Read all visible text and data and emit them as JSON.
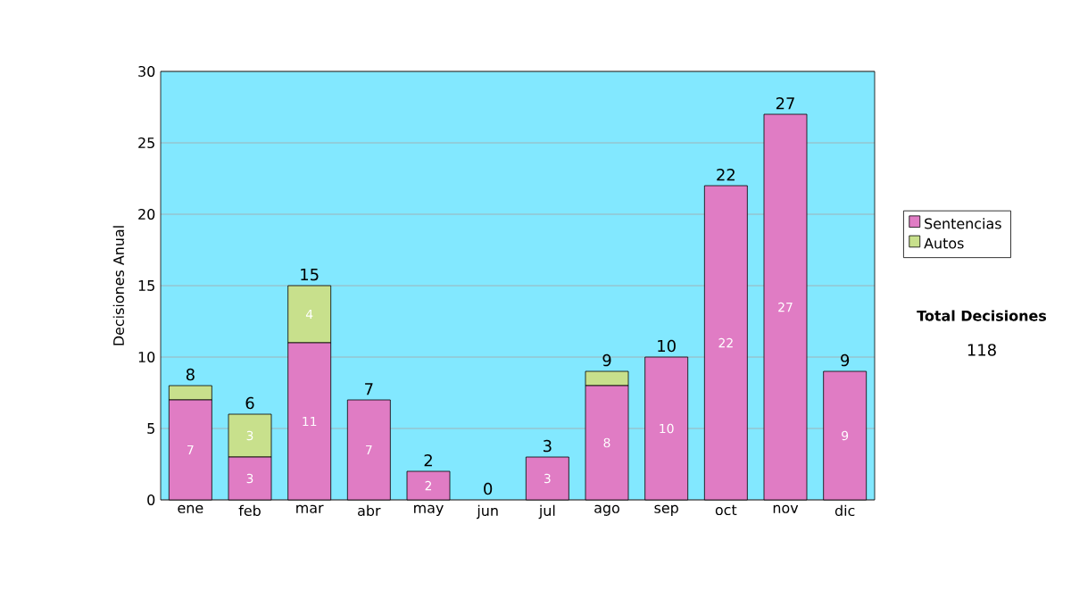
{
  "chart_data": {
    "type": "bar",
    "stacked": true,
    "ylabel": "Decisiones Anual",
    "categories": [
      "ene",
      "feb",
      "mar",
      "abr",
      "may",
      "jun",
      "jul",
      "ago",
      "sep",
      "oct",
      "nov",
      "dic"
    ],
    "series": [
      {
        "name": "Sentencias",
        "color": "#e07cc4",
        "values": [
          7,
          3,
          11,
          7,
          2,
          0,
          3,
          8,
          10,
          22,
          27,
          9
        ],
        "value_labels": [
          "7",
          "3",
          "11",
          "7",
          "2",
          null,
          "3",
          "8",
          "10",
          "22",
          "27",
          "9"
        ]
      },
      {
        "name": "Autos",
        "color": "#c8e08c",
        "values": [
          1,
          3,
          4,
          0,
          0,
          0,
          0,
          1,
          0,
          0,
          0,
          0
        ],
        "value_labels": [
          null,
          "3",
          "4",
          null,
          null,
          null,
          null,
          null,
          null,
          null,
          null,
          null
        ]
      }
    ],
    "totals": [
      "8",
      "6",
      "15",
      "7",
      "2",
      "0",
      "3",
      "9",
      "10",
      "22",
      "27",
      "9"
    ],
    "ylim": [
      0,
      30
    ],
    "yticks": [
      0,
      5,
      10,
      15,
      20,
      25,
      30
    ],
    "grid": "y",
    "legend": "right",
    "annotations": [
      "Total Decisiones",
      "118"
    ]
  }
}
